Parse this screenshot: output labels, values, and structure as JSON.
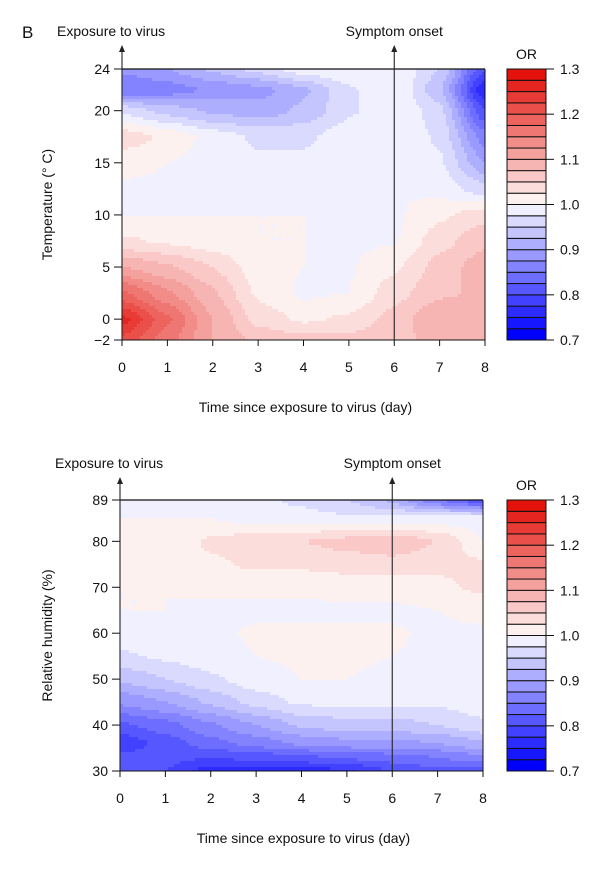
{
  "panel_label": "B",
  "chart_data": [
    {
      "type": "heatmap",
      "subtype": "filled-contour",
      "xlabel": "Time since exposure to virus (day)",
      "ylabel": "Temperature (° C)",
      "x_ticks": [
        0,
        1,
        2,
        3,
        4,
        5,
        6,
        7,
        8
      ],
      "y_ticks": [
        -2,
        0,
        5,
        10,
        15,
        20,
        24
      ],
      "xlim": [
        0,
        8
      ],
      "ylim": [
        -2,
        24
      ],
      "annotations": [
        {
          "label": "Exposure to virus",
          "x": 0
        },
        {
          "label": "Symptom onset",
          "x": 6
        }
      ],
      "colorbar": {
        "title": "OR",
        "range": [
          0.7,
          1.3
        ],
        "ticks": [
          0.7,
          0.8,
          0.9,
          1.0,
          1.1,
          1.2,
          1.3
        ],
        "levels": 24,
        "low_color": "#0000ff",
        "mid_color": "#ffffff",
        "high_color": "#e3120b"
      },
      "grid_x": [
        0,
        1,
        2,
        3,
        4,
        5,
        6,
        7,
        8
      ],
      "grid_y": [
        -2,
        0,
        2.5,
        5,
        7.5,
        10,
        12.5,
        15,
        17.5,
        20,
        22,
        24
      ],
      "values": [
        [
          1.22,
          1.16,
          1.1,
          1.07,
          1.06,
          1.06,
          1.07,
          1.08,
          1.08
        ],
        [
          1.26,
          1.18,
          1.1,
          1.04,
          1.02,
          1.03,
          1.06,
          1.1,
          1.08
        ],
        [
          1.18,
          1.13,
          1.08,
          1.02,
          0.995,
          1.0,
          1.04,
          1.07,
          1.08
        ],
        [
          1.1,
          1.08,
          1.05,
          1.01,
          1.0,
          0.997,
          1.02,
          1.06,
          1.09
        ],
        [
          1.03,
          1.02,
          1.01,
          1.0,
          1.0,
          0.995,
          0.997,
          1.04,
          1.07
        ],
        [
          1.0,
          1.0,
          1.0,
          1.0,
          1.0,
          0.995,
          0.995,
          1.02,
          1.04
        ],
        [
          0.995,
          0.995,
          0.995,
          0.995,
          0.995,
          0.995,
          1.0,
          0.99,
          0.96
        ],
        [
          1.01,
          1.0,
          0.99,
          0.98,
          0.98,
          0.99,
          1.0,
          0.98,
          0.9
        ],
        [
          1.04,
          1.02,
          0.99,
          0.97,
          0.97,
          0.99,
          1.0,
          0.97,
          0.86
        ],
        [
          0.97,
          0.94,
          0.92,
          0.91,
          0.93,
          0.97,
          1.0,
          0.96,
          0.8
        ],
        [
          0.85,
          0.86,
          0.88,
          0.89,
          0.92,
          0.97,
          1.0,
          0.93,
          0.75
        ],
        [
          0.88,
          0.9,
          0.93,
          0.96,
          0.99,
          1.0,
          1.0,
          0.95,
          0.8
        ]
      ]
    },
    {
      "type": "heatmap",
      "subtype": "filled-contour",
      "xlabel": "Time since exposure to virus (day)",
      "ylabel": "Relative humidity (%)",
      "x_ticks": [
        0,
        1,
        2,
        3,
        4,
        5,
        6,
        7,
        8
      ],
      "y_ticks": [
        30,
        40,
        50,
        60,
        70,
        80,
        89
      ],
      "xlim": [
        0,
        8
      ],
      "ylim": [
        30,
        89
      ],
      "annotations": [
        {
          "label": "Exposure to virus",
          "x": 0
        },
        {
          "label": "Symptom onset",
          "x": 6
        }
      ],
      "colorbar": {
        "title": "OR",
        "range": [
          0.7,
          1.3
        ],
        "ticks": [
          0.7,
          0.8,
          0.9,
          1.0,
          1.1,
          1.2,
          1.3
        ],
        "levels": 24,
        "low_color": "#0000ff",
        "mid_color": "#ffffff",
        "high_color": "#e3120b"
      },
      "grid_x": [
        0,
        1,
        2,
        3,
        4,
        5,
        6,
        7,
        8
      ],
      "grid_y": [
        30,
        33,
        36,
        40,
        45,
        50,
        55,
        60,
        65,
        70,
        75,
        80,
        85,
        89
      ],
      "values": [
        [
          0.82,
          0.8,
          0.76,
          0.76,
          0.76,
          0.77,
          0.8,
          0.82,
          0.8
        ],
        [
          0.81,
          0.81,
          0.8,
          0.81,
          0.82,
          0.83,
          0.84,
          0.85,
          0.87
        ],
        [
          0.78,
          0.81,
          0.84,
          0.86,
          0.88,
          0.89,
          0.89,
          0.9,
          0.92
        ],
        [
          0.82,
          0.84,
          0.87,
          0.9,
          0.93,
          0.94,
          0.94,
          0.95,
          0.97
        ],
        [
          0.88,
          0.9,
          0.93,
          0.96,
          0.98,
          0.98,
          0.98,
          0.98,
          0.99
        ],
        [
          0.93,
          0.95,
          0.97,
          0.99,
          1.0,
          1.0,
          0.995,
          0.995,
          0.995
        ],
        [
          0.97,
          0.98,
          0.99,
          1.0,
          1.004,
          1.004,
          1.0,
          0.995,
          0.995
        ],
        [
          0.995,
          0.995,
          0.995,
          1.003,
          1.005,
          1.005,
          1.003,
          0.995,
          0.995
        ],
        [
          1.0,
          1.0,
          0.995,
          0.995,
          0.995,
          0.995,
          0.995,
          1.0,
          1.01
        ],
        [
          1.0,
          1.0,
          1.005,
          1.005,
          1.005,
          1.01,
          1.01,
          1.02,
          1.03
        ],
        [
          1.0,
          1.005,
          1.02,
          1.03,
          1.03,
          1.035,
          1.04,
          1.03,
          1.03
        ],
        [
          1.0,
          1.005,
          1.03,
          1.04,
          1.05,
          1.06,
          1.07,
          1.05,
          1.0
        ],
        [
          1.0,
          1.0,
          1.0,
          0.99,
          0.985,
          0.98,
          0.98,
          0.985,
          0.99
        ],
        [
          0.99,
          0.99,
          0.99,
          0.98,
          0.97,
          0.95,
          0.92,
          0.85,
          0.8
        ]
      ]
    }
  ]
}
